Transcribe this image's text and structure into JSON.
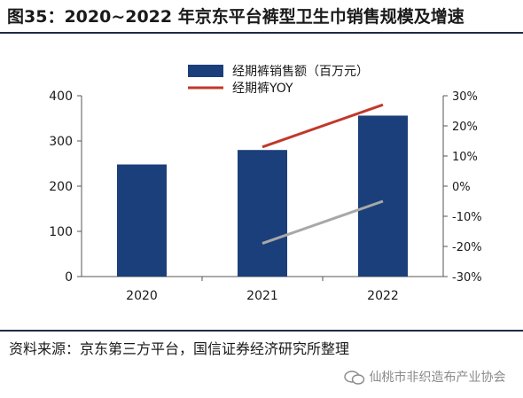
{
  "figure": {
    "title": "图35：2020~2022 年京东平台裤型卫生巾销售规模及增速",
    "source": "资料来源：京东第三方平台，国信证券经济研究所整理",
    "watermark": "仙桃市非织造布产业协会"
  },
  "chart_data": {
    "type": "bar",
    "categories": [
      "2020",
      "2021",
      "2022"
    ],
    "series": [
      {
        "name": "经期裤销售额（百万元）",
        "type": "bar",
        "axis": "left",
        "values": [
          248,
          280,
          356
        ],
        "color": "#1b3f7a"
      },
      {
        "name": "经期裤YOY",
        "type": "line",
        "axis": "right",
        "values": [
          null,
          13,
          27
        ],
        "color": "#c0392b"
      }
    ],
    "extra_lines": [
      {
        "axis": "right",
        "values": [
          null,
          -19,
          -5
        ],
        "color": "#a8a8a8"
      }
    ],
    "left_axis": {
      "min": 0,
      "max": 400,
      "ticks": [
        0,
        100,
        200,
        300,
        400
      ],
      "tick_labels": [
        "0",
        "100",
        "200",
        "300",
        "400"
      ]
    },
    "right_axis": {
      "min": -30,
      "max": 30,
      "ticks": [
        -30,
        -20,
        -10,
        0,
        10,
        20,
        30
      ],
      "tick_labels": [
        "-30%",
        "-20%",
        "-10%",
        "0%",
        "10%",
        "20%",
        "30%"
      ]
    },
    "grid": false,
    "legend_position": "top-center"
  }
}
